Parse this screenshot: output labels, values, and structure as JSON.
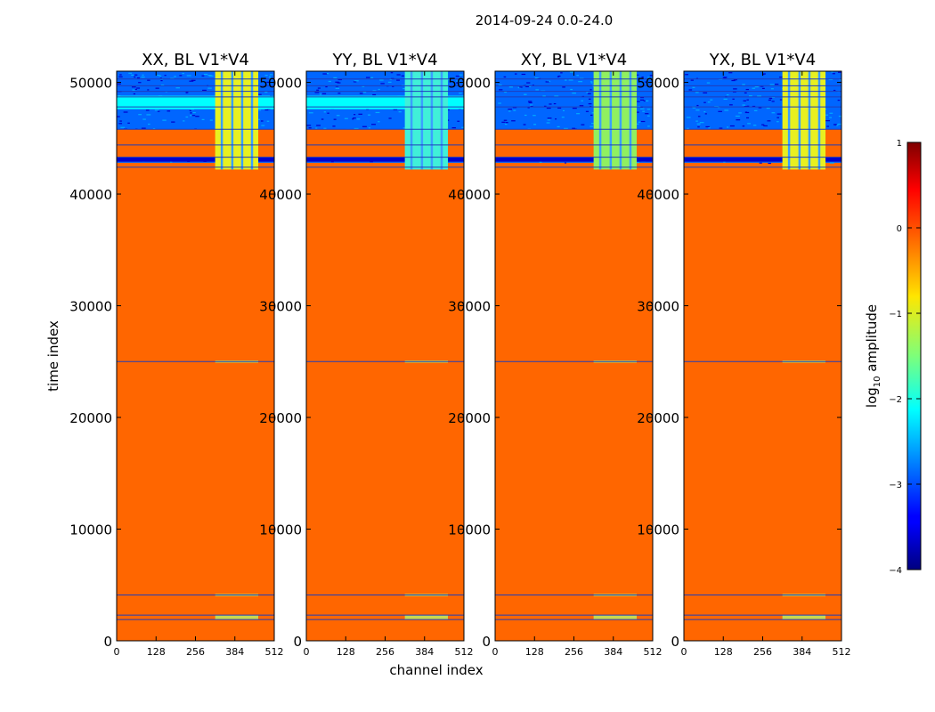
{
  "suptitle": "2014-09-24 0.0-24.0",
  "chart_data": {
    "type": "heatmap",
    "title": "2014-09-24 0.0-24.0",
    "xlabel": "channel index",
    "ylabel": "time index",
    "xlim": [
      0,
      512
    ],
    "ylim": [
      0,
      51000
    ],
    "x_ticks": [
      "0",
      "128",
      "256",
      "384",
      "512"
    ],
    "x_tick_values": [
      0,
      128,
      256,
      384,
      512
    ],
    "y_ticks": [
      "0",
      "10000",
      "20000",
      "30000",
      "40000",
      "50000"
    ],
    "y_tick_values": [
      0,
      10000,
      20000,
      30000,
      40000,
      50000
    ],
    "panels": [
      {
        "title": "XX, BL V1*V4",
        "band_plateau": "yellow",
        "horizontal_cyan_band": true
      },
      {
        "title": "YY, BL V1*V4",
        "band_plateau": "cyan",
        "horizontal_cyan_band": true
      },
      {
        "title": "XY, BL V1*V4",
        "band_plateau": "green",
        "horizontal_cyan_band": false
      },
      {
        "title": "YX, BL V1*V4",
        "band_plateau": "yellow",
        "horizontal_cyan_band": false
      }
    ],
    "flagged_fill_value": 0,
    "noise_region_time_range": [
      42800,
      51000
    ],
    "rfi_channel_range": [
      320,
      460
    ],
    "horizontal_lines_time": [
      1900,
      2300,
      4100,
      25000,
      42400,
      43300,
      44400,
      45800,
      47800,
      48700,
      49200,
      49700,
      50300
    ],
    "colorbar": {
      "label_prefix": "log",
      "label_sub": "10",
      "label_suffix": " amplitude",
      "range": [
        -4,
        1
      ],
      "ticks": [
        "1",
        "0",
        "−1",
        "−2",
        "−3",
        "−4"
      ],
      "tick_values": [
        1,
        0,
        -1,
        -2,
        -3,
        -4
      ],
      "colormap": "jet"
    }
  },
  "colors": {
    "flagged": "#ff6600",
    "noise_dark": "#0000cc",
    "noise_mid": "#0066ff",
    "cyan": "#00ffff",
    "line_blue": "#1f3dbb"
  }
}
